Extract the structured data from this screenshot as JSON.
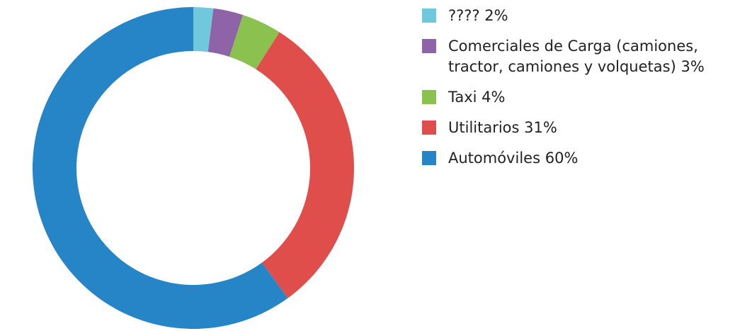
{
  "chart_data": {
    "type": "pie",
    "categories": [
      "????",
      "Comerciales de Carga (camiones, tractor, camiones y volquetas)",
      "Taxi",
      "Utilitarios",
      "Automóviles"
    ],
    "values": [
      2,
      3,
      4,
      31,
      60
    ],
    "value_labels": [
      "2%",
      "3%",
      "4%",
      "31%",
      "60%"
    ],
    "colors": [
      "#70c8dc",
      "#8f63a8",
      "#8bc14f",
      "#e04e4b",
      "#2585c7"
    ],
    "legend": "right"
  }
}
